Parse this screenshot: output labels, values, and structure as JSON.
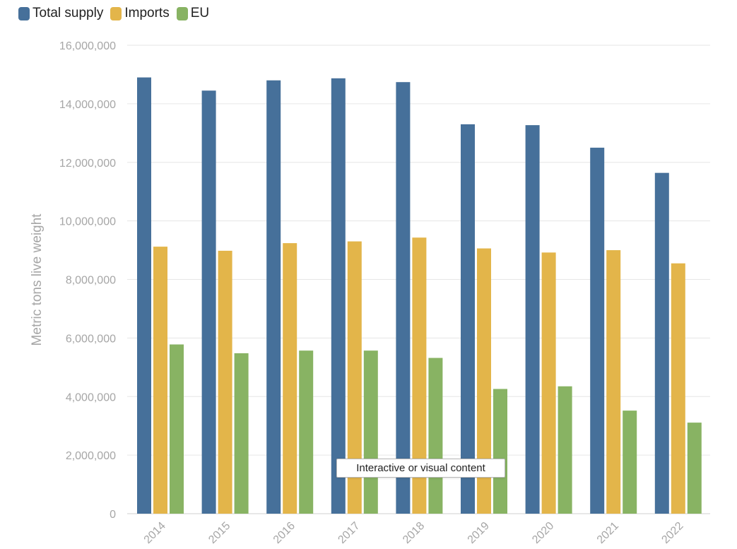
{
  "tooltip": {
    "text": "Interactive or visual content"
  },
  "chart_data": {
    "type": "bar",
    "categories": [
      "2014",
      "2015",
      "2016",
      "2017",
      "2018",
      "2019",
      "2020",
      "2021",
      "2022"
    ],
    "series": [
      {
        "name": "Total supply",
        "color": "#46709a",
        "values": [
          14900000,
          14450000,
          14800000,
          14870000,
          14740000,
          13300000,
          13270000,
          12500000,
          11640000
        ]
      },
      {
        "name": "Imports",
        "color": "#e3b54a",
        "values": [
          9120000,
          8980000,
          9240000,
          9300000,
          9430000,
          9060000,
          8920000,
          9000000,
          8550000
        ]
      },
      {
        "name": "EU",
        "color": "#88b363",
        "values": [
          5780000,
          5480000,
          5570000,
          5570000,
          5320000,
          4260000,
          4350000,
          3520000,
          3110000
        ]
      }
    ],
    "title": "",
    "xlabel": "",
    "ylabel": "Metric tons live weight",
    "ylim": [
      0,
      16000000
    ],
    "yticks": [
      0,
      2000000,
      4000000,
      6000000,
      8000000,
      10000000,
      12000000,
      14000000,
      16000000
    ],
    "ytick_labels": [
      "0",
      "2,000,000",
      "4,000,000",
      "6,000,000",
      "8,000,000",
      "10,000,000",
      "12,000,000",
      "14,000,000",
      "16,000,000"
    ],
    "grid": true,
    "legend_position": "top-left"
  }
}
